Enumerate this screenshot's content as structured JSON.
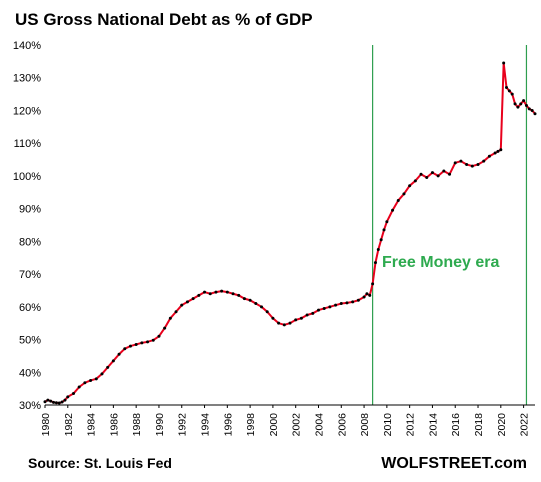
{
  "chart_data": {
    "type": "line",
    "title": "US Gross National Debt as % of GDP",
    "xlabel": "",
    "ylabel": "",
    "xlim": [
      1980,
      2023
    ],
    "ylim": [
      30,
      140
    ],
    "y_ticks": [
      "30%",
      "40%",
      "50%",
      "60%",
      "70%",
      "80%",
      "90%",
      "100%",
      "110%",
      "120%",
      "130%",
      "140%"
    ],
    "x_ticks": [
      "1980",
      "1982",
      "1984",
      "1986",
      "1988",
      "1990",
      "1992",
      "1994",
      "1996",
      "1998",
      "2000",
      "2002",
      "2004",
      "2006",
      "2008",
      "2010",
      "2012",
      "2014",
      "2016",
      "2018",
      "2020",
      "2022"
    ],
    "grid": false,
    "line_color": "#e8001c",
    "marker_color": "#000000",
    "vline_color": "#2e9e4f",
    "vlines": [
      2008.75,
      2022.25
    ],
    "annotation": {
      "text": "Free Money era",
      "color": "#2eaa4f"
    },
    "source": "Source: St. Louis Fed",
    "brand": "WOLFSTREET.com",
    "x": [
      1980,
      1980.25,
      1980.5,
      1980.75,
      1981,
      1981.25,
      1981.5,
      1981.75,
      1982,
      1982.5,
      1983,
      1983.5,
      1984,
      1984.5,
      1985,
      1985.5,
      1986,
      1986.5,
      1987,
      1987.5,
      1988,
      1988.5,
      1989,
      1989.5,
      1990,
      1990.5,
      1991,
      1991.5,
      1992,
      1992.5,
      1993,
      1993.5,
      1994,
      1994.5,
      1995,
      1995.5,
      1996,
      1996.5,
      1997,
      1997.5,
      1998,
      1998.5,
      1999,
      1999.5,
      2000,
      2000.5,
      2001,
      2001.5,
      2002,
      2002.5,
      2003,
      2003.5,
      2004,
      2004.5,
      2005,
      2005.5,
      2006,
      2006.5,
      2007,
      2007.5,
      2008,
      2008.25,
      2008.5,
      2008.75,
      2009,
      2009.25,
      2009.5,
      2009.75,
      2010,
      2010.5,
      2011,
      2011.5,
      2012,
      2012.5,
      2013,
      2013.5,
      2014,
      2014.5,
      2015,
      2015.5,
      2016,
      2016.5,
      2017,
      2017.5,
      2018,
      2018.5,
      2019,
      2019.5,
      2019.75,
      2020,
      2020.25,
      2020.5,
      2020.75,
      2021,
      2021.25,
      2021.5,
      2021.75,
      2022,
      2022.25,
      2022.5,
      2022.75,
      2023
    ],
    "values": [
      31.0,
      31.5,
      31.2,
      30.8,
      30.7,
      30.6,
      30.9,
      31.5,
      32.5,
      33.5,
      35.5,
      36.8,
      37.5,
      38.0,
      39.5,
      41.5,
      43.5,
      45.5,
      47.2,
      48.0,
      48.5,
      49.0,
      49.3,
      49.8,
      51.0,
      53.5,
      56.5,
      58.5,
      60.5,
      61.5,
      62.5,
      63.5,
      64.5,
      64.0,
      64.5,
      64.8,
      64.5,
      64.0,
      63.5,
      62.5,
      62.0,
      61.0,
      60.0,
      58.5,
      56.5,
      55.0,
      54.5,
      55.0,
      56.0,
      56.5,
      57.5,
      58.0,
      59.0,
      59.5,
      60.0,
      60.5,
      61.0,
      61.2,
      61.5,
      62.0,
      63.0,
      64.0,
      63.5,
      67.0,
      73.5,
      77.5,
      80.5,
      83.5,
      86.0,
      89.5,
      92.5,
      94.5,
      97.0,
      98.5,
      100.5,
      99.5,
      101.0,
      100.0,
      101.5,
      100.5,
      104.0,
      104.5,
      103.5,
      103.0,
      103.5,
      104.5,
      106.0,
      107.0,
      107.5,
      108.0,
      134.5,
      127.0,
      126.0,
      125.0,
      122.0,
      121.0,
      122.0,
      123.0,
      121.5,
      120.5,
      120.0,
      119.0
    ]
  }
}
